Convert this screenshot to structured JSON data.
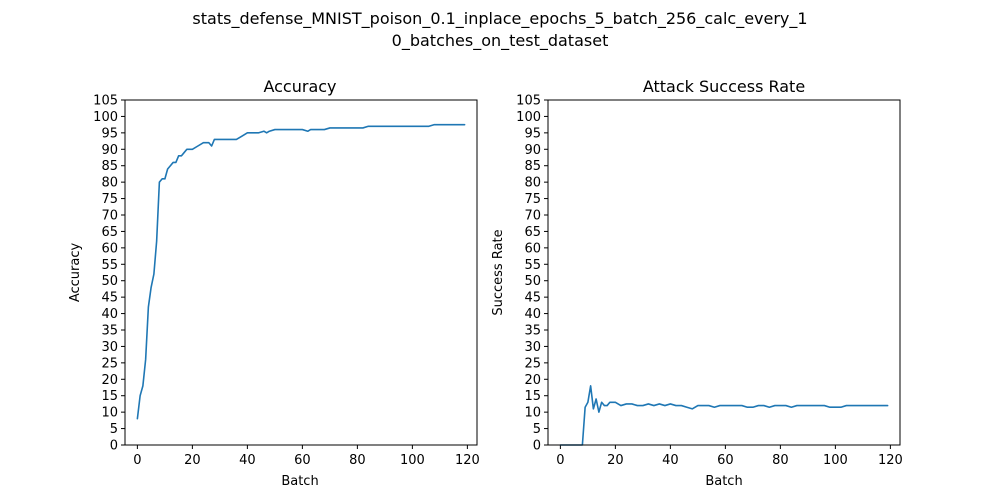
{
  "figure": {
    "title_line1": "stats_defense_MNIST_poison_0.1_inplace_epochs_5_batch_256_calc_every_1",
    "title_line2": "0_batches_on_test_dataset",
    "series_color": "#1f77b4"
  },
  "chart_data": [
    {
      "type": "line",
      "title": "Accuracy",
      "xlabel": "Batch",
      "ylabel": "Accuracy",
      "xlim": [
        -4.5,
        123.5
      ],
      "ylim": [
        0,
        105
      ],
      "xticks": [
        0,
        20,
        40,
        60,
        80,
        100,
        120
      ],
      "yticks": [
        0,
        5,
        10,
        15,
        20,
        25,
        30,
        35,
        40,
        45,
        50,
        55,
        60,
        65,
        70,
        75,
        80,
        85,
        90,
        95,
        100,
        105
      ],
      "grid": false,
      "x": [
        0,
        1,
        2,
        3,
        4,
        5,
        6,
        7,
        8,
        9,
        10,
        11,
        12,
        13,
        14,
        15,
        16,
        17,
        18,
        19,
        20,
        22,
        24,
        26,
        27,
        28,
        30,
        32,
        34,
        36,
        38,
        40,
        42,
        44,
        46,
        47,
        48,
        50,
        52,
        54,
        56,
        58,
        60,
        62,
        63,
        64,
        66,
        68,
        70,
        72,
        74,
        76,
        78,
        80,
        82,
        84,
        86,
        88,
        90,
        92,
        94,
        96,
        98,
        100,
        102,
        104,
        106,
        108,
        110,
        112,
        114,
        116,
        118,
        119
      ],
      "values": [
        8,
        15,
        18,
        26,
        42,
        48,
        52,
        62,
        80,
        81,
        81,
        84,
        85,
        86,
        86,
        88,
        88,
        89,
        90,
        90,
        90,
        91,
        92,
        92,
        91,
        93,
        93,
        93,
        93,
        93,
        94,
        95,
        95,
        95,
        95.5,
        95,
        95.5,
        96,
        96,
        96,
        96,
        96,
        96,
        95.5,
        96,
        96,
        96,
        96,
        96.5,
        96.5,
        96.5,
        96.5,
        96.5,
        96.5,
        96.5,
        97,
        97,
        97,
        97,
        97,
        97,
        97,
        97,
        97,
        97,
        97,
        97,
        97.5,
        97.5,
        97.5,
        97.5,
        97.5,
        97.5,
        97.5
      ]
    },
    {
      "type": "line",
      "title": "Attack Success Rate",
      "xlabel": "Batch",
      "ylabel": "Success Rate",
      "xlim": [
        -4.5,
        123.5
      ],
      "ylim": [
        0,
        105
      ],
      "xticks": [
        0,
        20,
        40,
        60,
        80,
        100,
        120
      ],
      "yticks": [
        0,
        5,
        10,
        15,
        20,
        25,
        30,
        35,
        40,
        45,
        50,
        55,
        60,
        65,
        70,
        75,
        80,
        85,
        90,
        95,
        100,
        105
      ],
      "grid": false,
      "x": [
        0,
        2,
        4,
        6,
        7,
        8,
        9,
        10,
        11,
        12,
        13,
        14,
        15,
        16,
        17,
        18,
        19,
        20,
        22,
        24,
        26,
        28,
        30,
        32,
        34,
        36,
        38,
        40,
        42,
        44,
        46,
        48,
        50,
        52,
        54,
        56,
        58,
        60,
        62,
        64,
        66,
        68,
        70,
        72,
        74,
        76,
        78,
        80,
        82,
        84,
        86,
        88,
        90,
        92,
        94,
        96,
        98,
        100,
        102,
        104,
        106,
        108,
        110,
        112,
        114,
        116,
        118,
        119
      ],
      "values": [
        0,
        0,
        0,
        0,
        0,
        0,
        11.5,
        13,
        18,
        11,
        14,
        10,
        13,
        12,
        12,
        13,
        13,
        13,
        12,
        12.5,
        12.5,
        12,
        12,
        12.5,
        12,
        12.5,
        12,
        12.5,
        12,
        12,
        11.5,
        11,
        12,
        12,
        12,
        11.5,
        12,
        12,
        12,
        12,
        12,
        11.5,
        11.5,
        12,
        12,
        11.5,
        12,
        12,
        12,
        11.5,
        12,
        12,
        12,
        12,
        12,
        12,
        11.5,
        11.5,
        11.5,
        12,
        12,
        12,
        12,
        12,
        12,
        12,
        12,
        12
      ]
    }
  ]
}
